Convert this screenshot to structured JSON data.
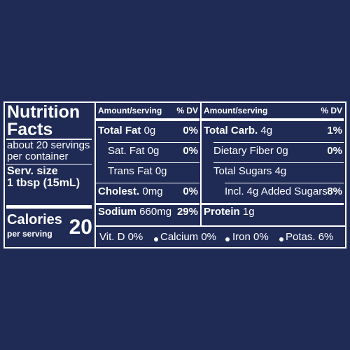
{
  "label": {
    "title": [
      "Nutrition",
      "Facts"
    ],
    "servings": [
      "about 20 servings",
      "per container"
    ],
    "serving_size": [
      "Serv. size",
      "1 tbsp (15mL)"
    ],
    "calories": {
      "label": "Calories",
      "sublabel": "per serving",
      "value": "20"
    },
    "columns": [
      {
        "amount_header": "Amount/serving",
        "dv_header": "% DV",
        "rows": [
          {
            "name": "Total Fat",
            "amount": "0g",
            "dv": "0%"
          },
          {
            "name": "Sat. Fat",
            "amount": "0g",
            "dv": "0%"
          },
          {
            "name": "Trans Fat",
            "amount": "0g"
          },
          {
            "name": "Cholest.",
            "amount": "0mg",
            "dv": "0%"
          },
          {
            "name": "Sodium",
            "amount": "660mg",
            "dv": "29%"
          }
        ]
      },
      {
        "amount_header": "Amount/serving",
        "dv_header": "% DV",
        "rows": [
          {
            "name": "Total Carb.",
            "amount": "4g",
            "dv": "1%"
          },
          {
            "name": "Dietary Fiber",
            "amount": "0g",
            "dv": "0%"
          },
          {
            "name": "Total Sugars",
            "amount": "4g"
          },
          {
            "name": "Incl. 4g Added Sugars",
            "dv": "8%"
          },
          {
            "name": "Protein",
            "amount": "1g"
          }
        ]
      }
    ],
    "footer": [
      "Vit. D 0%",
      "Calcium 0%",
      "Iron 0%",
      "Potas. 6%"
    ]
  }
}
